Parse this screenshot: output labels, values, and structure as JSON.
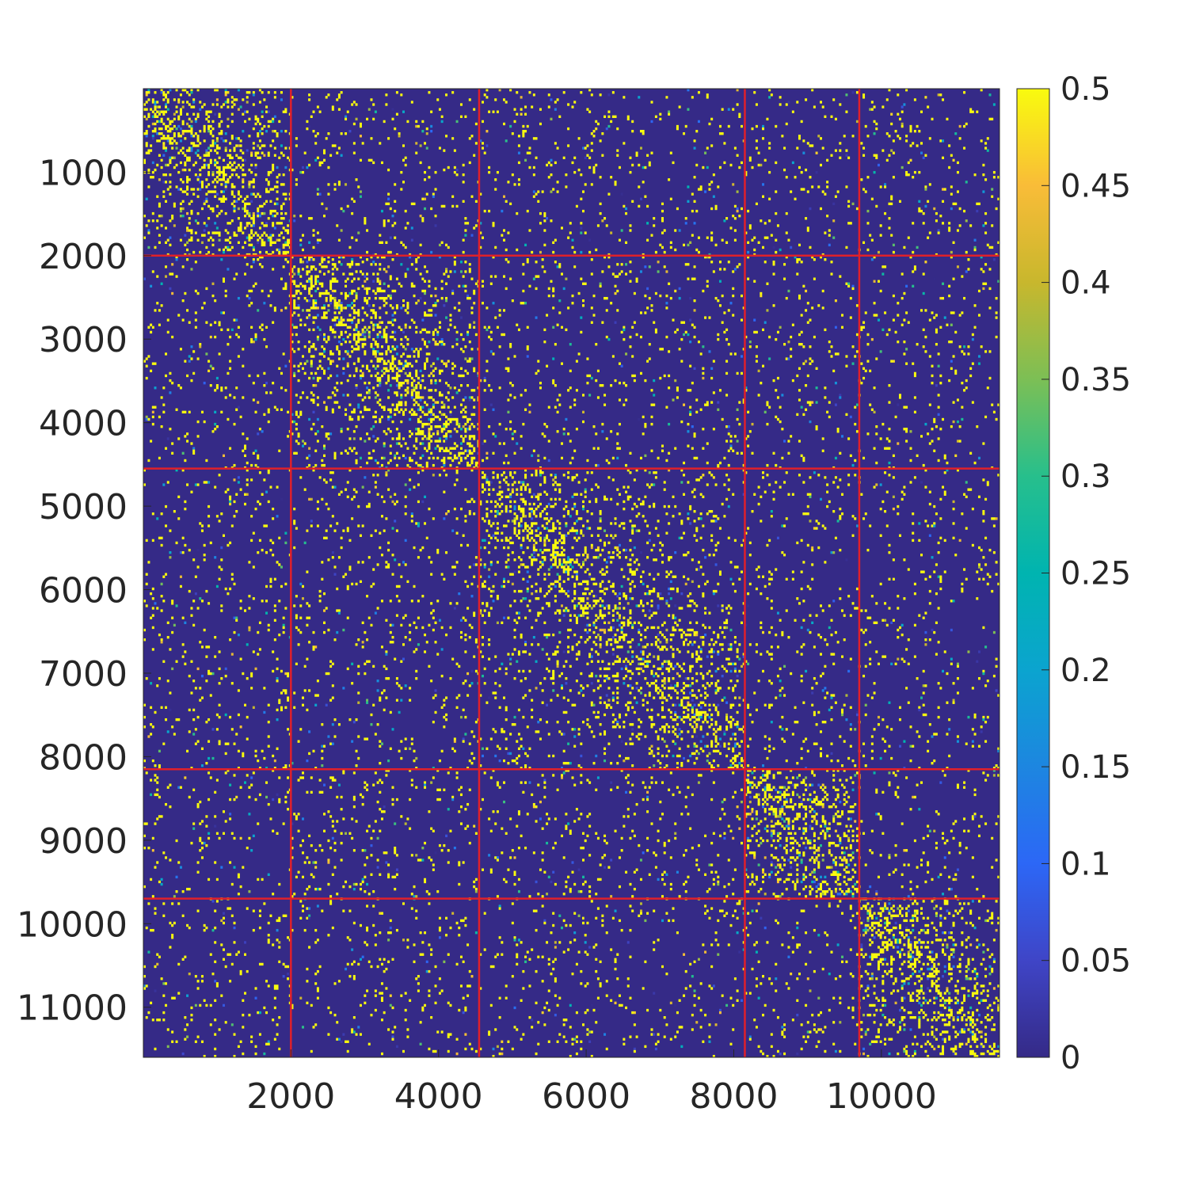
{
  "chart_data": {
    "type": "heatmap",
    "title": "",
    "xlabel": "",
    "ylabel": "",
    "xlim": [
      1,
      11600
    ],
    "ylim": [
      1,
      11600
    ],
    "y_axis_direction": "reversed",
    "x_ticks": [
      2000,
      4000,
      6000,
      8000,
      10000
    ],
    "x_tick_labels": [
      "2000",
      "4000",
      "6000",
      "8000",
      "10000"
    ],
    "y_ticks": [
      1000,
      2000,
      3000,
      4000,
      5000,
      6000,
      7000,
      8000,
      9000,
      10000,
      11000
    ],
    "y_tick_labels": [
      "1000",
      "2000",
      "3000",
      "4000",
      "5000",
      "6000",
      "7000",
      "8000",
      "9000",
      "10000",
      "11000"
    ],
    "colormap": "parula",
    "color_range": [
      0,
      0.5
    ],
    "colorbar_ticks": [
      0,
      0.05,
      0.1,
      0.15,
      0.2,
      0.25,
      0.3,
      0.35,
      0.4,
      0.45,
      0.5
    ],
    "colorbar_tick_labels": [
      "0",
      "0.05",
      "0.1",
      "0.15",
      "0.2",
      "0.25",
      "0.3",
      "0.35",
      "0.4",
      "0.45",
      "0.5"
    ],
    "colorbar_location": "right",
    "grid": false,
    "block_boundaries": [
      2000,
      4550,
      8150,
      9700
    ],
    "boundary_color": "#e0202a",
    "background_value": 0.0,
    "diagonal_blocks": [
      {
        "start": 1,
        "end": 2000,
        "density": 0.3
      },
      {
        "start": 2000,
        "end": 4550,
        "density": 0.28
      },
      {
        "start": 4550,
        "end": 8150,
        "density": 0.26
      },
      {
        "start": 8150,
        "end": 9700,
        "density": 0.3
      },
      {
        "start": 9700,
        "end": 11600,
        "density": 0.3
      }
    ]
  }
}
